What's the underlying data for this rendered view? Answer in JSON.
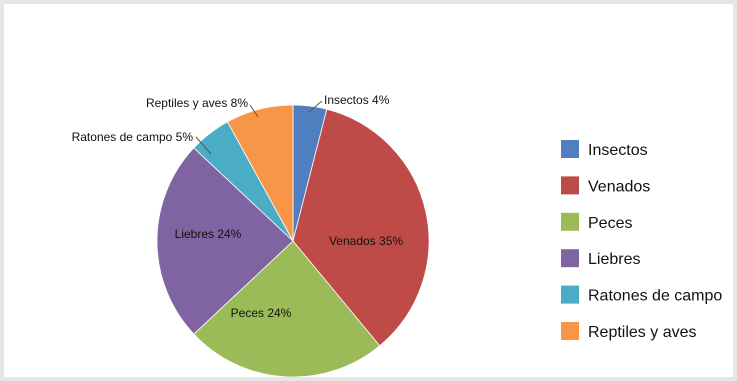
{
  "chart_data": {
    "type": "pie",
    "title": "",
    "series": [
      {
        "label": "Insectos",
        "value": 4,
        "color": "#4f7fbf",
        "data_label": "Insectos 4%"
      },
      {
        "label": "Venados",
        "value": 35,
        "color": "#be4b48",
        "data_label": "Venados 35%"
      },
      {
        "label": "Peces",
        "value": 24,
        "color": "#9bbb59",
        "data_label": "Peces 24%"
      },
      {
        "label": "Liebres",
        "value": 24,
        "color": "#8064a2",
        "data_label": "Liebres 24%"
      },
      {
        "label": "Ratones de campo",
        "value": 5,
        "color": "#4bacc6",
        "data_label": "Ratones de campo 5%"
      },
      {
        "label": "Reptiles y aves",
        "value": 8,
        "color": "#f79646",
        "data_label": "Reptiles y aves 8%"
      }
    ],
    "legend": {
      "placement": "right",
      "items": [
        "Insectos",
        "Venados",
        "Peces",
        "Liebres",
        "Ratones de campo",
        "Reptiles y aves"
      ]
    }
  }
}
